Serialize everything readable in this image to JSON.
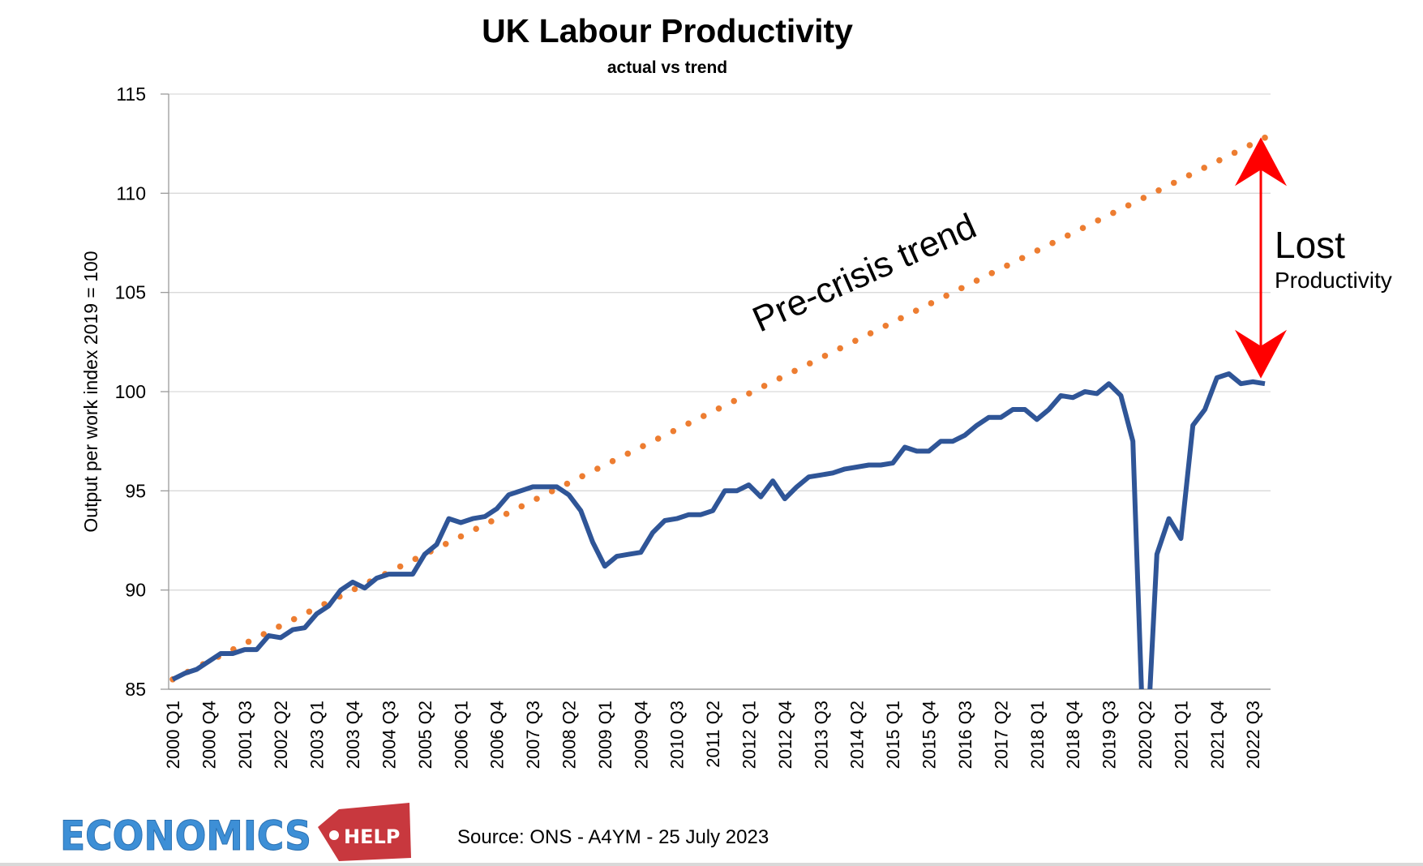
{
  "chart_data": {
    "type": "line",
    "title": "UK Labour Productivity",
    "subtitle": "actual vs trend",
    "ylabel": "Output per work index 2019 = 100",
    "xlabel": "",
    "ylim": [
      85,
      115
    ],
    "yticks": [
      85,
      90,
      95,
      100,
      105,
      110,
      115
    ],
    "grid": true,
    "categories": [
      "2000 Q1",
      "2000 Q2",
      "2000 Q3",
      "2000 Q4",
      "2001 Q1",
      "2001 Q2",
      "2001 Q3",
      "2001 Q4",
      "2002 Q1",
      "2002 Q2",
      "2002 Q3",
      "2002 Q4",
      "2003 Q1",
      "2003 Q2",
      "2003 Q3",
      "2003 Q4",
      "2004 Q1",
      "2004 Q2",
      "2004 Q3",
      "2004 Q4",
      "2005 Q1",
      "2005 Q2",
      "2005 Q3",
      "2005 Q4",
      "2006 Q1",
      "2006 Q2",
      "2006 Q3",
      "2006 Q4",
      "2007 Q1",
      "2007 Q2",
      "2007 Q3",
      "2007 Q4",
      "2008 Q1",
      "2008 Q2",
      "2008 Q3",
      "2008 Q4",
      "2009 Q1",
      "2009 Q2",
      "2009 Q3",
      "2009 Q4",
      "2010 Q1",
      "2010 Q2",
      "2010 Q3",
      "2010 Q4",
      "2011 Q1",
      "2011 Q2",
      "2011 Q3",
      "2011 Q4",
      "2012 Q1",
      "2012 Q2",
      "2012 Q3",
      "2012 Q4",
      "2013 Q1",
      "2013 Q2",
      "2013 Q3",
      "2013 Q4",
      "2014 Q1",
      "2014 Q2",
      "2014 Q3",
      "2014 Q4",
      "2015 Q1",
      "2015 Q2",
      "2015 Q3",
      "2015 Q4",
      "2016 Q1",
      "2016 Q2",
      "2016 Q3",
      "2016 Q4",
      "2017 Q1",
      "2017 Q2",
      "2017 Q3",
      "2017 Q4",
      "2018 Q1",
      "2018 Q2",
      "2018 Q3",
      "2018 Q4",
      "2019 Q1",
      "2019 Q2",
      "2019 Q3",
      "2019 Q4",
      "2020 Q1",
      "2020 Q2",
      "2020 Q3",
      "2020 Q4",
      "2021 Q1",
      "2021 Q2",
      "2021 Q3",
      "2021 Q4",
      "2022 Q1",
      "2022 Q2",
      "2022 Q3",
      "2022 Q4"
    ],
    "tick_label_every": 3,
    "series": [
      {
        "style": "solid",
        "color": "#2f5597",
        "values": [
          85.5,
          85.8,
          86.0,
          86.4,
          86.8,
          86.8,
          87.0,
          87.0,
          87.7,
          87.6,
          88.0,
          88.1,
          88.8,
          89.2,
          90.0,
          90.4,
          90.1,
          90.6,
          90.8,
          90.8,
          90.8,
          91.8,
          92.3,
          93.6,
          93.4,
          93.6,
          93.7,
          94.1,
          94.8,
          95.0,
          95.2,
          95.2,
          95.2,
          94.8,
          94.0,
          92.4,
          91.2,
          91.7,
          91.8,
          91.9,
          92.9,
          93.5,
          93.6,
          93.8,
          93.8,
          94.0,
          95.0,
          95.0,
          95.3,
          94.7,
          95.5,
          94.6,
          95.2,
          95.7,
          95.8,
          95.9,
          96.1,
          96.2,
          96.3,
          96.3,
          96.4,
          97.2,
          97.0,
          97.0,
          97.5,
          97.5,
          97.8,
          98.3,
          98.7,
          98.7,
          99.1,
          99.1,
          98.6,
          99.1,
          99.8,
          99.7,
          100.0,
          99.9,
          100.4,
          99.8,
          97.5,
          80.0,
          91.8,
          93.6,
          92.6,
          98.3,
          99.1,
          100.7,
          100.9,
          100.4,
          100.5,
          100.4
        ]
      },
      {
        "style": "dotted",
        "color": "#ed7d31",
        "trend_start": 85.5,
        "trend_end": 112.8
      }
    ],
    "annotations": {
      "trend_label": "Pre-crisis trend",
      "gap_label_big": "Lost",
      "gap_label_small": "Productivity",
      "arrow_color": "#ff0000",
      "arrow_from": 112.0,
      "arrow_to": 100.5
    }
  },
  "footer": {
    "logo_word": "ECONOMICS",
    "logo_tag": "HELP",
    "logo_color": "#3d8fd6",
    "tag_color": "#c8383e",
    "source": "Source: ONS - A4YM - 25 July 2023"
  }
}
